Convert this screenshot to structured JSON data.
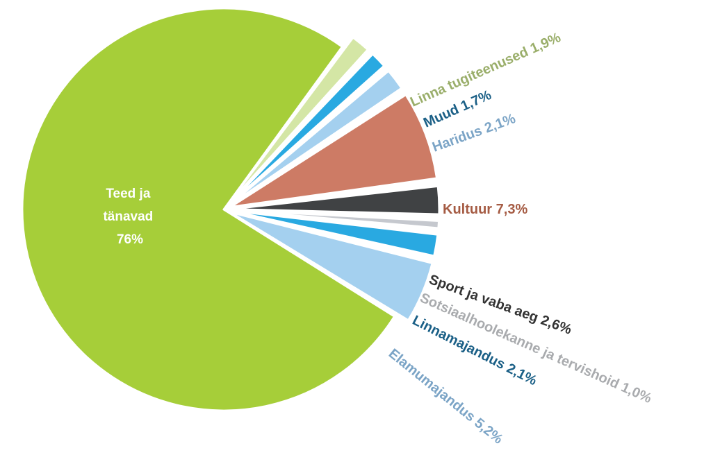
{
  "chart_data": {
    "type": "pie",
    "title": "",
    "slices": [
      {
        "name": "Teed ja tänavad",
        "value": 76,
        "label": "Teed ja tänavad 76%",
        "label_lines": [
          "Teed ja",
          "tänavad",
          "76%"
        ],
        "color": "#a6ce39",
        "label_color": "#ffffff"
      },
      {
        "name": "Linna tugiteenused",
        "value": 1.9,
        "label": "Linna tugiteenused 1,9%",
        "color": "#d4e6a5",
        "label_color": "#9aae6a"
      },
      {
        "name": "Muud",
        "value": 1.7,
        "label": "Muud 1,7%",
        "color": "#29a9e1",
        "label_color": "#1a5f86"
      },
      {
        "name": "Haridus",
        "value": 2.1,
        "label": "Haridus 2,1%",
        "color": "#a4d0ef",
        "label_color": "#7ba4c6"
      },
      {
        "name": "Kultuur",
        "value": 7.3,
        "label": "Kultuur 7,3%",
        "color": "#cd7b65",
        "label_color": "#a55b43"
      },
      {
        "name": "Sport ja vaba aeg",
        "value": 2.6,
        "label": "Sport ja vaba aeg 2,6%",
        "color": "#404244",
        "label_color": "#333333"
      },
      {
        "name": "Sotsiaalhoolekanne ja tervishoid",
        "value": 1.0,
        "label": "Sotsiaalhoolekanne ja tervishoid 1,0%",
        "color": "#c5c8ce",
        "label_color": "#a9abae"
      },
      {
        "name": "Linnamajandus",
        "value": 2.1,
        "label": "Linnamajandus 2,1%",
        "color": "#29a9e1",
        "label_color": "#1a5f86"
      },
      {
        "name": "Elamumajandus",
        "value": 5.2,
        "label": "Elamumajandus 5,2%",
        "color": "#a4d0ef",
        "label_color": "#7ba4c6"
      }
    ]
  }
}
